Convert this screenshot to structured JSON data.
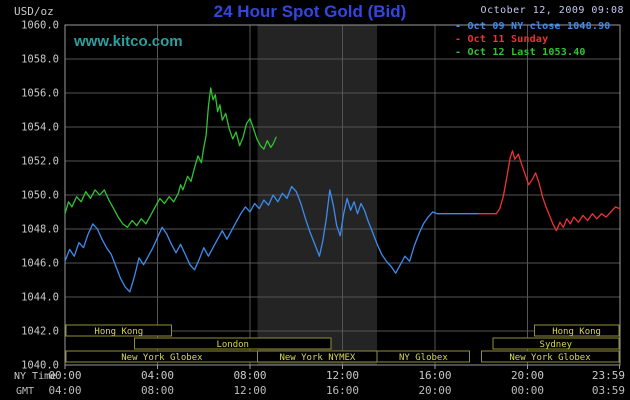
{
  "header": {
    "unit_label": "USD/oz",
    "title": "24 Hour Spot Gold (Bid)",
    "datetime": "October 12, 2009 09:08",
    "watermark": "www.kitco.com"
  },
  "legend": [
    {
      "id": "oct09-close",
      "text": "Oct 09 NY close 1048.90",
      "color": "#3C8CEE"
    },
    {
      "id": "oct11-sunday",
      "text": "Oct 11 Sunday",
      "color": "#EE3333"
    },
    {
      "id": "oct12-last",
      "text": "Oct 12 Last 1053.40",
      "color": "#2FC42F"
    }
  ],
  "axes": {
    "ny_time_label": "NY Time",
    "gmt_label": "GMT",
    "y_ticks": [
      "1060.0",
      "1058.0",
      "1056.0",
      "1054.0",
      "1052.0",
      "1050.0",
      "1048.0",
      "1046.0",
      "1044.0",
      "1042.0",
      "1040.0"
    ],
    "x_ticks_ny": [
      "00:00",
      "04:00",
      "08:00",
      "12:00",
      "16:00",
      "20:00",
      "23:59"
    ],
    "x_ticks_gmt": [
      "04:00",
      "08:00",
      "12:00",
      "16:00",
      "20:00",
      "00:00",
      "03:59"
    ]
  },
  "sessions": {
    "rows": [
      {
        "boxes": [
          {
            "label": "Hong Kong",
            "start": 0.05,
            "end": 4.6
          },
          {
            "label": "Hong Kong",
            "start": 20.3,
            "end": 23.95
          }
        ]
      },
      {
        "boxes": [
          {
            "label": "London",
            "start": 3.0,
            "end": 11.5
          },
          {
            "label": "Sydney",
            "start": 18.5,
            "end": 23.95
          }
        ]
      },
      {
        "boxes": [
          {
            "label": "New York Globex",
            "start": 0.05,
            "end": 8.33
          },
          {
            "label": "New York NYMEX",
            "start": 8.33,
            "end": 13.5
          },
          {
            "label": "NY Globex",
            "start": 13.5,
            "end": 17.5
          },
          {
            "label": "New York Globex",
            "start": 18.0,
            "end": 23.95
          }
        ]
      }
    ]
  },
  "colors": {
    "background": "#000000",
    "title": "#3347E0",
    "datetime": "#C6C6F0",
    "watermark": "#2E9E9E",
    "axis_text": "#C9C9C9",
    "gmt_text": "#BDBDBD",
    "grid": "#555555",
    "border": "#9A9A9A",
    "band": "#242424",
    "session_border": "#8F8F33",
    "session_text": "#D8D84A",
    "session_fill": "#000000"
  },
  "chart_data": {
    "type": "line",
    "title": "24 Hour Spot Gold (Bid)",
    "xlabel": "NY Time",
    "ylabel": "USD/oz",
    "x_range_hours": [
      0,
      24
    ],
    "ylim": [
      1040,
      1060
    ],
    "y_tick_step": 2,
    "x_tick_hours": [
      0,
      4,
      8,
      12,
      16,
      20,
      23.983
    ],
    "nymex_band_hours": [
      8.33,
      13.5
    ],
    "grid": true,
    "legend_position": "top-right",
    "series": [
      {
        "id": "oct09-close",
        "name": "Oct 09 NY close 1048.90",
        "close_value": 1048.9,
        "color": "#3C8CEE",
        "points": [
          [
            0.0,
            1046.1
          ],
          [
            0.2,
            1046.8
          ],
          [
            0.4,
            1046.4
          ],
          [
            0.6,
            1047.2
          ],
          [
            0.8,
            1046.9
          ],
          [
            1.0,
            1047.7
          ],
          [
            1.2,
            1048.3
          ],
          [
            1.4,
            1048.0
          ],
          [
            1.6,
            1047.4
          ],
          [
            1.8,
            1046.9
          ],
          [
            2.0,
            1046.5
          ],
          [
            2.2,
            1045.8
          ],
          [
            2.4,
            1045.1
          ],
          [
            2.6,
            1044.6
          ],
          [
            2.8,
            1044.3
          ],
          [
            3.0,
            1045.2
          ],
          [
            3.2,
            1046.3
          ],
          [
            3.4,
            1045.9
          ],
          [
            3.6,
            1046.4
          ],
          [
            3.8,
            1046.9
          ],
          [
            4.0,
            1047.5
          ],
          [
            4.2,
            1048.1
          ],
          [
            4.4,
            1047.7
          ],
          [
            4.6,
            1047.1
          ],
          [
            4.8,
            1046.6
          ],
          [
            5.0,
            1047.1
          ],
          [
            5.2,
            1046.5
          ],
          [
            5.4,
            1045.9
          ],
          [
            5.6,
            1045.6
          ],
          [
            5.8,
            1046.2
          ],
          [
            6.0,
            1046.9
          ],
          [
            6.2,
            1046.4
          ],
          [
            6.4,
            1046.9
          ],
          [
            6.6,
            1047.4
          ],
          [
            6.8,
            1047.9
          ],
          [
            7.0,
            1047.4
          ],
          [
            7.2,
            1047.9
          ],
          [
            7.4,
            1048.4
          ],
          [
            7.6,
            1048.9
          ],
          [
            7.8,
            1049.3
          ],
          [
            8.0,
            1049.0
          ],
          [
            8.2,
            1049.5
          ],
          [
            8.4,
            1049.2
          ],
          [
            8.6,
            1049.7
          ],
          [
            8.8,
            1049.4
          ],
          [
            9.0,
            1050.0
          ],
          [
            9.2,
            1049.6
          ],
          [
            9.4,
            1050.1
          ],
          [
            9.6,
            1049.8
          ],
          [
            9.8,
            1050.5
          ],
          [
            10.0,
            1050.2
          ],
          [
            10.2,
            1049.5
          ],
          [
            10.4,
            1048.6
          ],
          [
            10.6,
            1047.8
          ],
          [
            10.8,
            1047.1
          ],
          [
            11.0,
            1046.4
          ],
          [
            11.15,
            1047.3
          ],
          [
            11.3,
            1048.6
          ],
          [
            11.45,
            1050.3
          ],
          [
            11.6,
            1049.4
          ],
          [
            11.75,
            1048.2
          ],
          [
            11.9,
            1047.6
          ],
          [
            12.05,
            1048.9
          ],
          [
            12.2,
            1049.8
          ],
          [
            12.35,
            1049.1
          ],
          [
            12.5,
            1049.6
          ],
          [
            12.65,
            1048.9
          ],
          [
            12.8,
            1049.5
          ],
          [
            12.95,
            1049.1
          ],
          [
            13.1,
            1048.5
          ],
          [
            13.3,
            1047.8
          ],
          [
            13.5,
            1047.1
          ],
          [
            13.7,
            1046.5
          ],
          [
            13.9,
            1046.1
          ],
          [
            14.1,
            1045.8
          ],
          [
            14.3,
            1045.4
          ],
          [
            14.5,
            1045.9
          ],
          [
            14.7,
            1046.4
          ],
          [
            14.9,
            1046.1
          ],
          [
            15.1,
            1047.0
          ],
          [
            15.3,
            1047.7
          ],
          [
            15.5,
            1048.3
          ],
          [
            15.7,
            1048.7
          ],
          [
            15.9,
            1049.0
          ],
          [
            16.1,
            1048.9
          ],
          [
            17.9,
            1048.9
          ]
        ]
      },
      {
        "id": "oct11-sunday",
        "name": "Oct 11 Sunday",
        "color": "#EE3333",
        "points": [
          [
            17.9,
            1048.9
          ],
          [
            18.65,
            1048.9
          ],
          [
            18.8,
            1049.2
          ],
          [
            18.95,
            1049.9
          ],
          [
            19.1,
            1051.0
          ],
          [
            19.25,
            1052.2
          ],
          [
            19.35,
            1052.6
          ],
          [
            19.45,
            1052.1
          ],
          [
            19.6,
            1052.4
          ],
          [
            19.75,
            1051.8
          ],
          [
            19.9,
            1051.2
          ],
          [
            20.05,
            1050.6
          ],
          [
            20.2,
            1050.9
          ],
          [
            20.35,
            1051.3
          ],
          [
            20.5,
            1050.7
          ],
          [
            20.65,
            1049.9
          ],
          [
            20.8,
            1049.3
          ],
          [
            20.95,
            1048.8
          ],
          [
            21.1,
            1048.3
          ],
          [
            21.25,
            1047.9
          ],
          [
            21.4,
            1048.4
          ],
          [
            21.55,
            1048.1
          ],
          [
            21.7,
            1048.6
          ],
          [
            21.85,
            1048.3
          ],
          [
            22.0,
            1048.7
          ],
          [
            22.2,
            1048.4
          ],
          [
            22.4,
            1048.8
          ],
          [
            22.6,
            1048.5
          ],
          [
            22.8,
            1048.9
          ],
          [
            23.0,
            1048.6
          ],
          [
            23.2,
            1048.9
          ],
          [
            23.4,
            1048.7
          ],
          [
            23.6,
            1049.0
          ],
          [
            23.8,
            1049.3
          ],
          [
            23.98,
            1049.2
          ]
        ]
      },
      {
        "id": "oct12-last",
        "name": "Oct 12 Last 1053.40",
        "last_value": 1053.4,
        "color": "#2FC42F",
        "points": [
          [
            0.0,
            1048.9
          ],
          [
            0.15,
            1049.6
          ],
          [
            0.3,
            1049.3
          ],
          [
            0.5,
            1049.9
          ],
          [
            0.7,
            1049.6
          ],
          [
            0.9,
            1050.2
          ],
          [
            1.1,
            1049.8
          ],
          [
            1.3,
            1050.3
          ],
          [
            1.5,
            1050.0
          ],
          [
            1.7,
            1050.3
          ],
          [
            1.9,
            1049.7
          ],
          [
            2.1,
            1049.2
          ],
          [
            2.3,
            1048.7
          ],
          [
            2.5,
            1048.3
          ],
          [
            2.7,
            1048.1
          ],
          [
            2.9,
            1048.5
          ],
          [
            3.1,
            1048.2
          ],
          [
            3.3,
            1048.6
          ],
          [
            3.5,
            1048.3
          ],
          [
            3.7,
            1048.8
          ],
          [
            3.9,
            1049.3
          ],
          [
            4.1,
            1049.8
          ],
          [
            4.3,
            1049.5
          ],
          [
            4.5,
            1049.9
          ],
          [
            4.7,
            1049.6
          ],
          [
            4.9,
            1050.1
          ],
          [
            5.0,
            1050.6
          ],
          [
            5.1,
            1050.3
          ],
          [
            5.3,
            1051.1
          ],
          [
            5.45,
            1050.8
          ],
          [
            5.6,
            1051.6
          ],
          [
            5.75,
            1052.3
          ],
          [
            5.9,
            1051.9
          ],
          [
            6.0,
            1052.8
          ],
          [
            6.1,
            1053.5
          ],
          [
            6.2,
            1055.2
          ],
          [
            6.3,
            1056.3
          ],
          [
            6.4,
            1055.6
          ],
          [
            6.5,
            1055.9
          ],
          [
            6.6,
            1054.9
          ],
          [
            6.7,
            1055.3
          ],
          [
            6.8,
            1054.4
          ],
          [
            6.95,
            1054.8
          ],
          [
            7.1,
            1053.9
          ],
          [
            7.25,
            1053.3
          ],
          [
            7.4,
            1053.7
          ],
          [
            7.55,
            1052.9
          ],
          [
            7.7,
            1053.4
          ],
          [
            7.85,
            1054.2
          ],
          [
            8.0,
            1054.5
          ],
          [
            8.15,
            1053.9
          ],
          [
            8.3,
            1053.3
          ],
          [
            8.45,
            1052.9
          ],
          [
            8.6,
            1052.7
          ],
          [
            8.75,
            1053.2
          ],
          [
            8.9,
            1052.8
          ],
          [
            9.0,
            1053.0
          ],
          [
            9.13,
            1053.4
          ]
        ]
      }
    ]
  }
}
